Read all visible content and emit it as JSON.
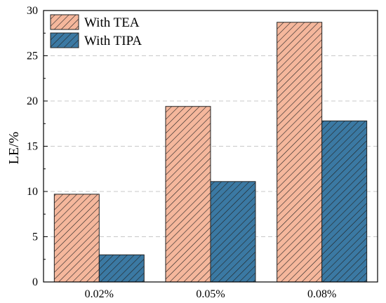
{
  "chart_data": {
    "type": "bar",
    "categories": [
      "0.02%",
      "0.05%",
      "0.08%"
    ],
    "series": [
      {
        "name": "With TEA",
        "values": [
          9.7,
          19.4,
          28.7
        ],
        "color": "#f5b79c"
      },
      {
        "name": "With TIPA",
        "values": [
          3.0,
          11.1,
          17.8
        ],
        "color": "#3b79a3"
      }
    ],
    "xlabel": "",
    "ylabel": "LE/%",
    "ylim": [
      0,
      30
    ],
    "yticks": [
      "0",
      "5",
      "10",
      "15",
      "20",
      "25",
      "30"
    ],
    "grid": true,
    "legend_position": "top-left",
    "bar_pattern": "diagonal-hatch"
  }
}
